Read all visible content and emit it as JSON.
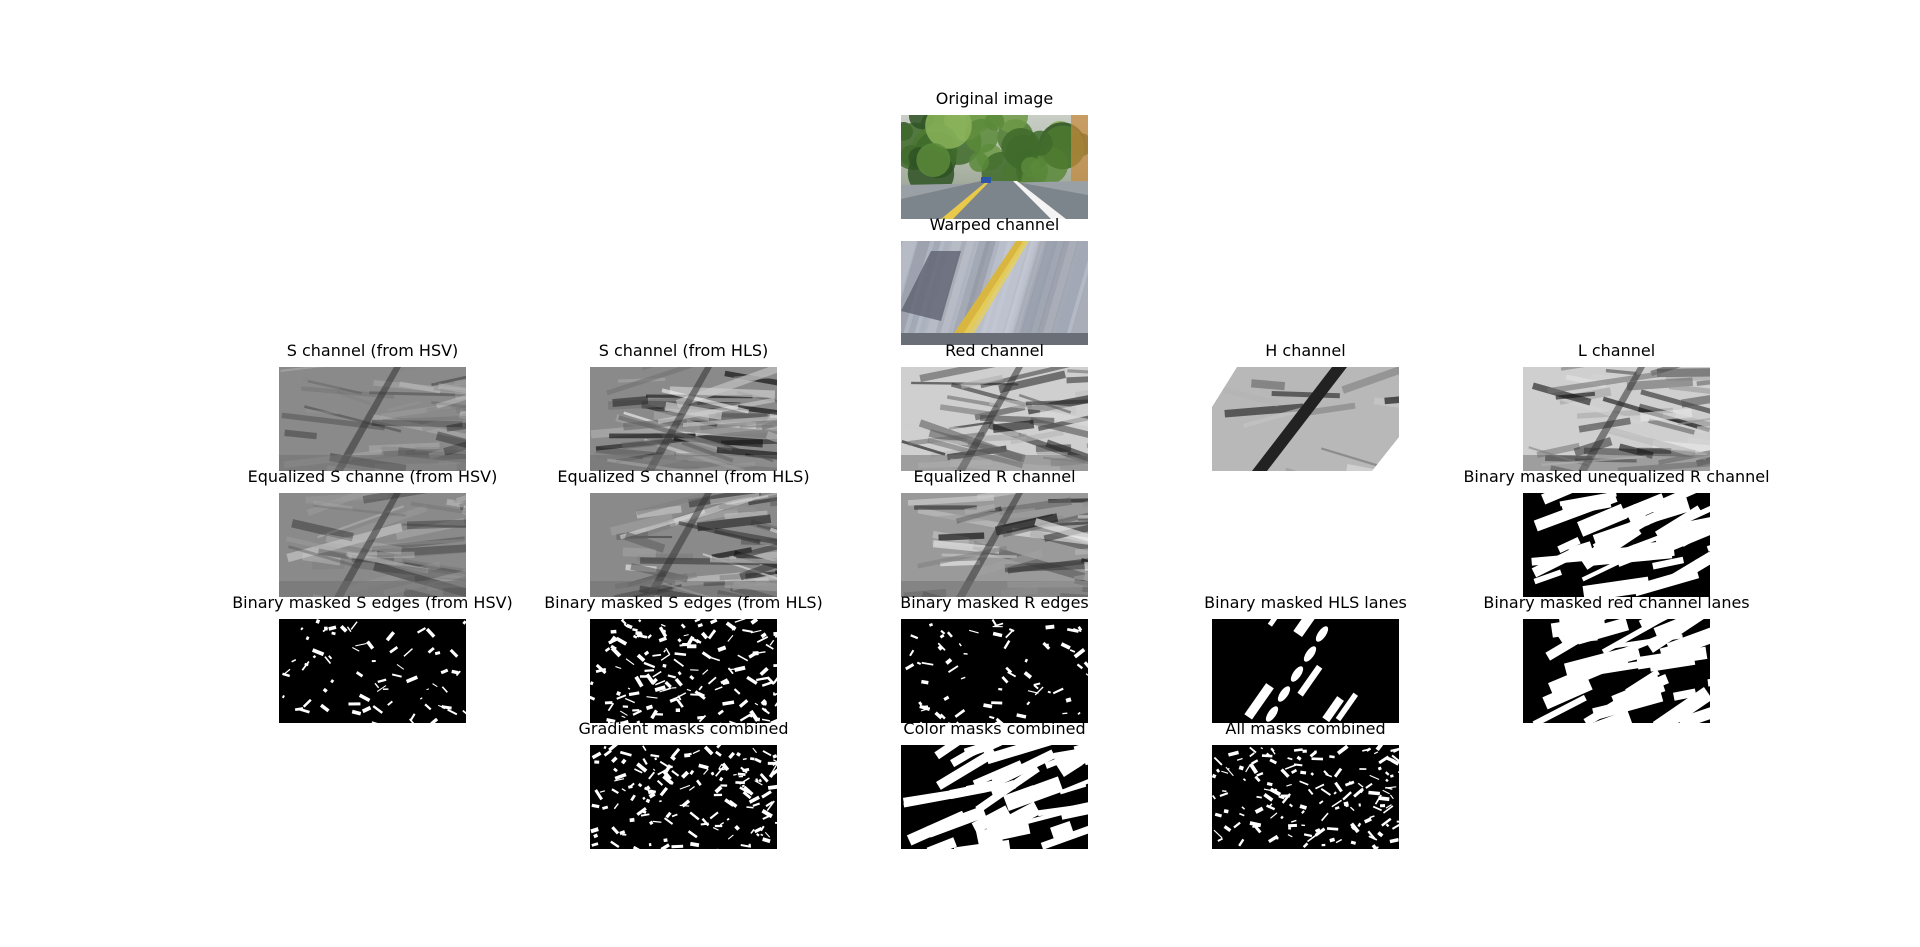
{
  "figure": {
    "panels": [
      {
        "id": "original",
        "title": "Original image",
        "col": 2,
        "row": 0,
        "style": "photo-road"
      },
      {
        "id": "warped",
        "title": "Warped channel",
        "col": 2,
        "row": 1,
        "style": "photo-warped"
      },
      {
        "id": "s-hsv",
        "title": "S channel (from HSV)",
        "col": 0,
        "row": 2,
        "style": "gray-blurry"
      },
      {
        "id": "s-hls",
        "title": "S channel (from HLS)",
        "col": 1,
        "row": 2,
        "style": "gray-streaks"
      },
      {
        "id": "red",
        "title": "Red channel",
        "col": 2,
        "row": 2,
        "style": "gray-light"
      },
      {
        "id": "h",
        "title": "H channel",
        "col": 3,
        "row": 2,
        "style": "gray-hue"
      },
      {
        "id": "l",
        "title": "L channel",
        "col": 4,
        "row": 2,
        "style": "gray-light"
      },
      {
        "id": "eq-s-hsv",
        "title": "Equalized S channe (from HSV)",
        "col": 0,
        "row": 3,
        "style": "gray-blurry"
      },
      {
        "id": "eq-s-hls",
        "title": "Equalized S channel (from HLS)",
        "col": 1,
        "row": 3,
        "style": "gray-streaks"
      },
      {
        "id": "eq-r",
        "title": "Equalized R channel",
        "col": 2,
        "row": 3,
        "style": "gray-eq"
      },
      {
        "id": "bin-uneq-r",
        "title": "Binary masked unequalized R channel",
        "col": 4,
        "row": 3,
        "style": "binary-heavy"
      },
      {
        "id": "bin-s-hsv",
        "title": "Binary masked S edges (from HSV)",
        "col": 0,
        "row": 4,
        "style": "binary-sparse"
      },
      {
        "id": "bin-s-hls",
        "title": "Binary masked S edges (from HLS)",
        "col": 1,
        "row": 4,
        "style": "binary-dense"
      },
      {
        "id": "bin-r",
        "title": "Binary masked R edges",
        "col": 2,
        "row": 4,
        "style": "binary-sparse"
      },
      {
        "id": "bin-hls-lanes",
        "title": "Binary masked HLS lanes",
        "col": 3,
        "row": 4,
        "style": "binary-lane"
      },
      {
        "id": "bin-red-lanes",
        "title": "Binary masked red channel lanes",
        "col": 4,
        "row": 4,
        "style": "binary-heavy"
      },
      {
        "id": "grad-comb",
        "title": "Gradient masks combined",
        "col": 1,
        "row": 5,
        "style": "binary-dense"
      },
      {
        "id": "color-comb",
        "title": "Color masks combined",
        "col": 2,
        "row": 5,
        "style": "binary-heavy"
      },
      {
        "id": "all-comb",
        "title": "All masks combined",
        "col": 3,
        "row": 5,
        "style": "binary-dense"
      }
    ]
  }
}
